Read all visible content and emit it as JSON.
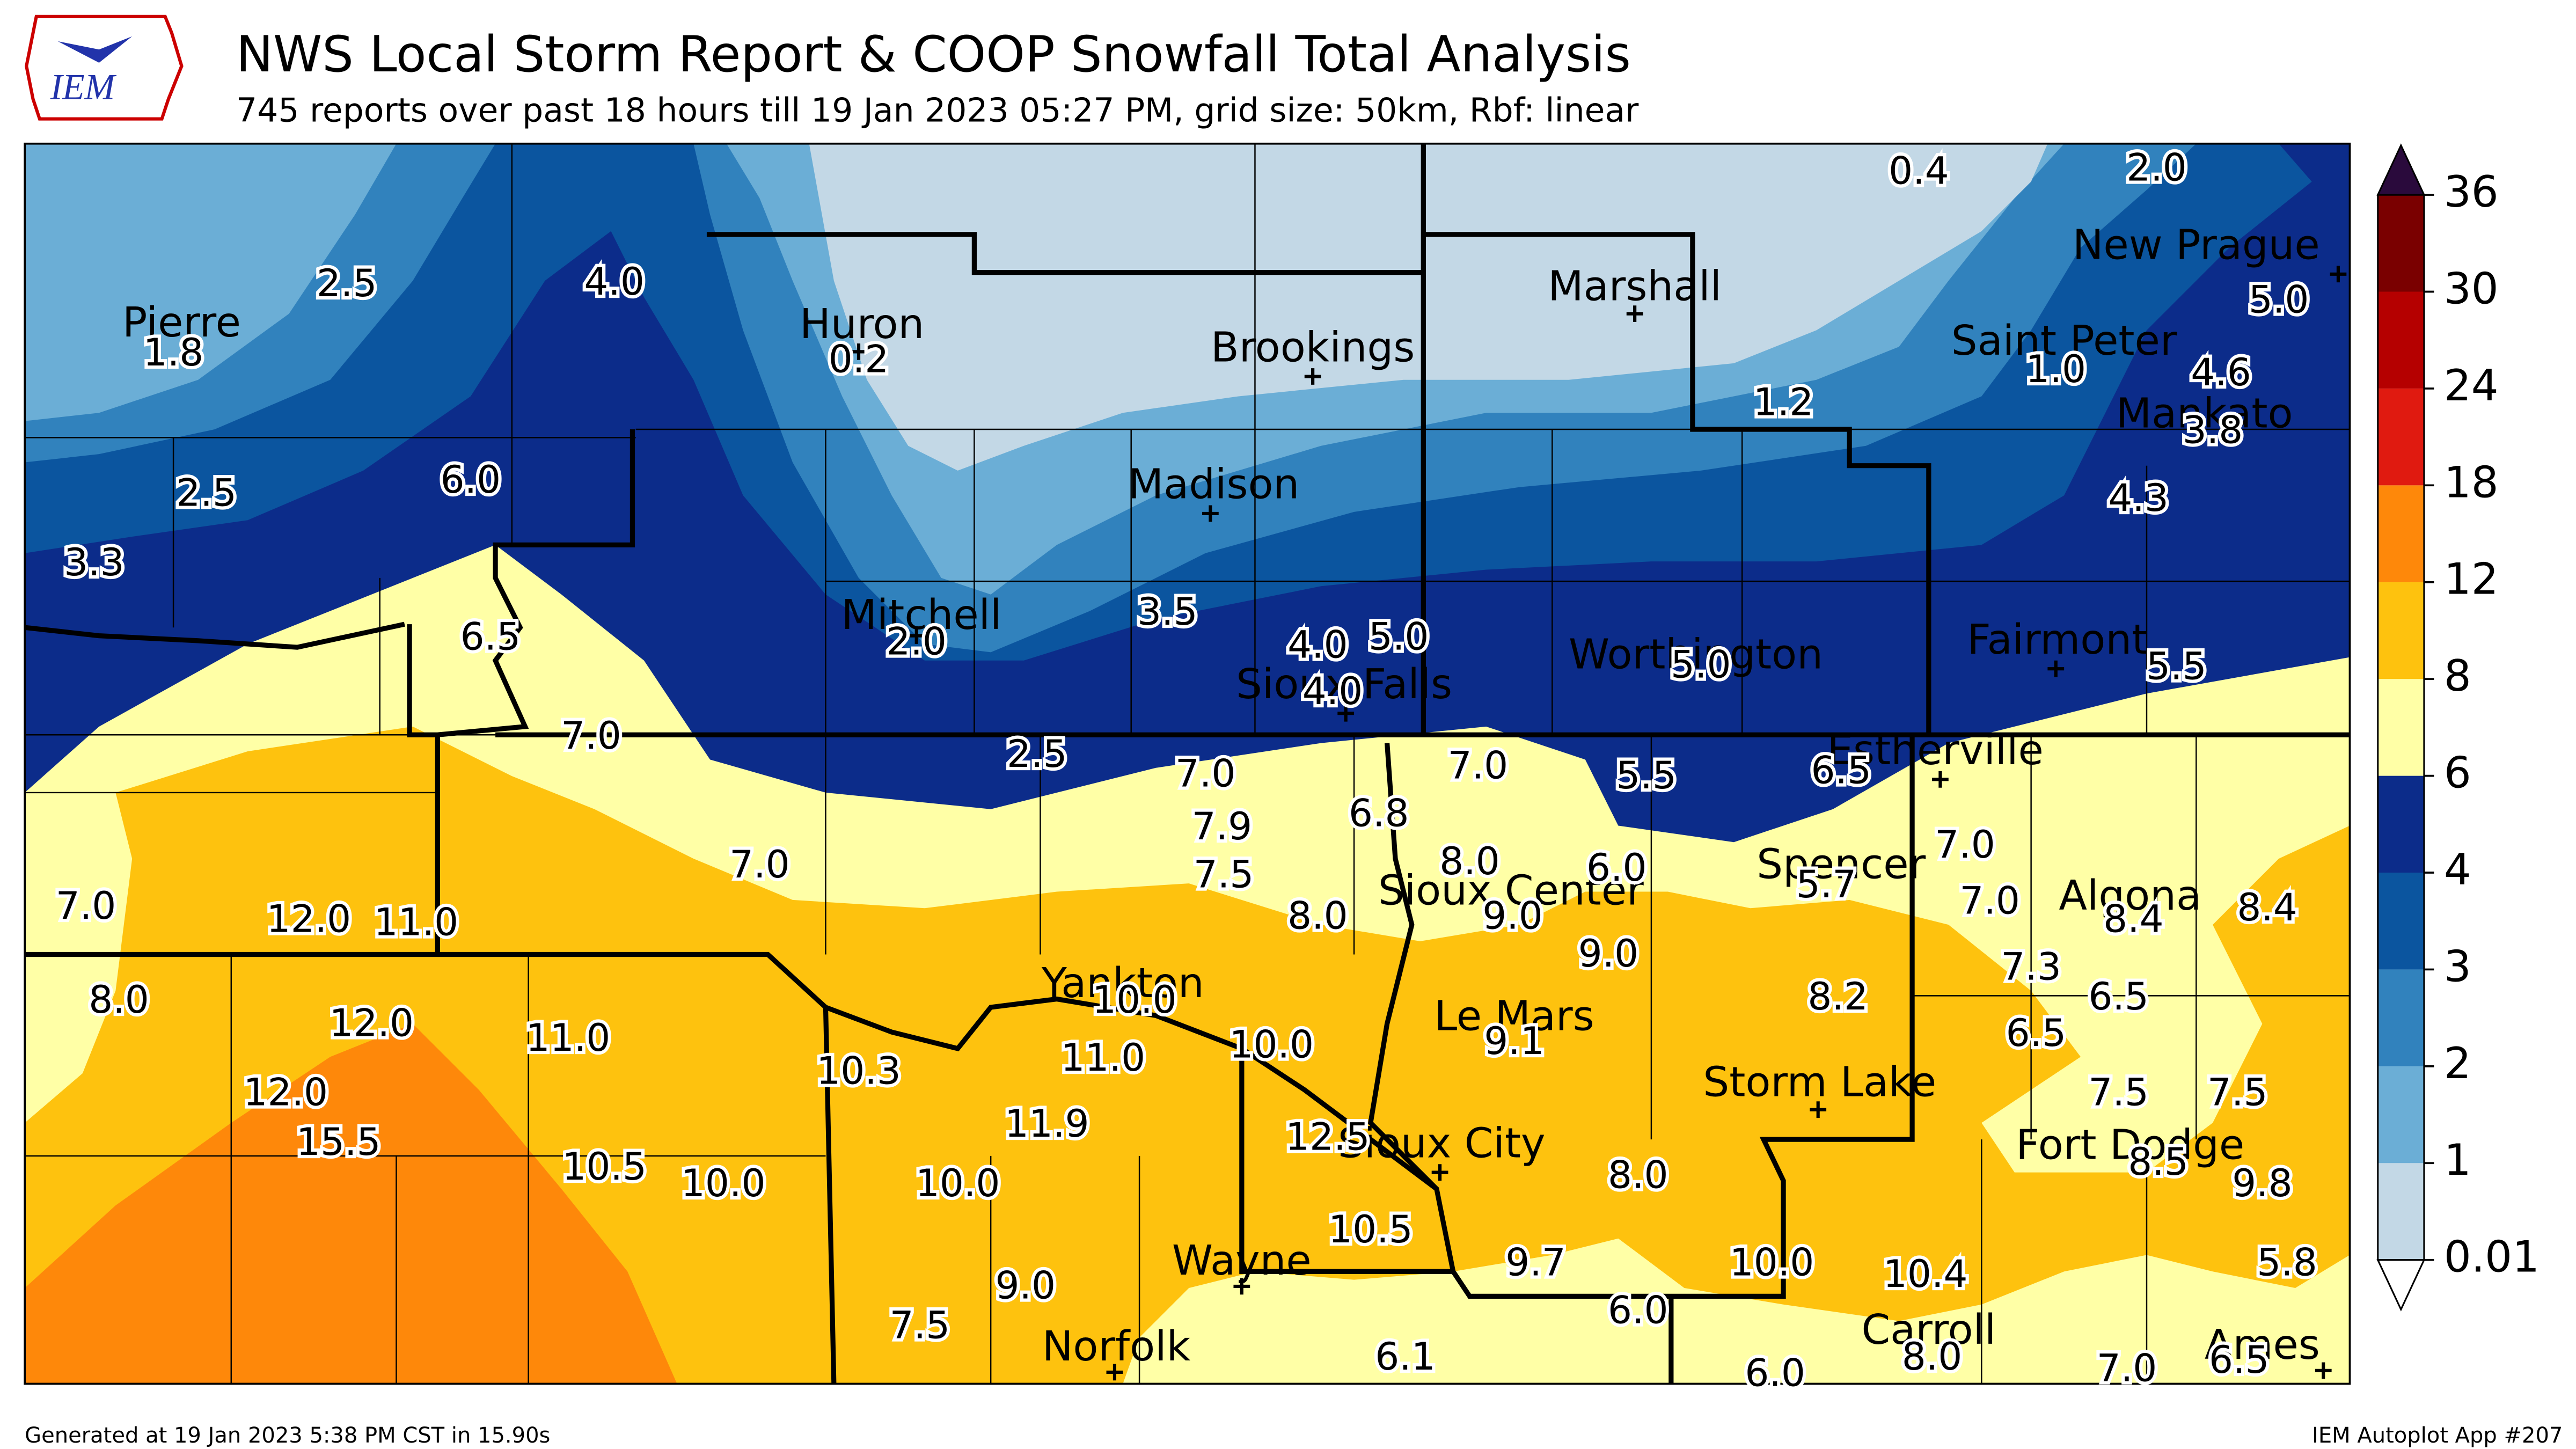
{
  "header": {
    "title": "NWS Local Storm Report & COOP Snowfall Total Analysis",
    "subtitle": "745 reports over past 18 hours till 19 Jan 2023 05:27 PM, grid size: 50km, Rbf: linear",
    "logo_text": "IEM"
  },
  "map": {
    "cities": [
      "Pierre",
      "Huron",
      "Brookings",
      "Marshall",
      "Saint Peter",
      "New Prague",
      "Mankato",
      "Madison",
      "Mitchell",
      "Sioux Falls",
      "Worthington",
      "Fairmont",
      "Estherville",
      "Spencer",
      "Algona",
      "Sioux Center",
      "Le Mars",
      "Yankton",
      "Storm Lake",
      "Fort Dodge",
      "Sioux City",
      "Wayne",
      "Norfolk",
      "Carroll",
      "Ames"
    ],
    "reports": [
      "1.8",
      "2.5",
      "4.0",
      "0.2",
      "2.5",
      "6.0",
      "3.3",
      "6.5",
      "7.0",
      "2.0",
      "3.5",
      "4.0",
      "5.0",
      "4.0",
      "2.5",
      "0.4",
      "2.0",
      "5.0",
      "1.2",
      "1.0",
      "4.6",
      "3.8",
      "4.3",
      "5.0",
      "5.5",
      "7.0",
      "6.8",
      "7.0",
      "5.5",
      "6.5",
      "7.9",
      "7.0",
      "8.0",
      "6.0",
      "7.5",
      "5.7",
      "7.0",
      "7.0",
      "12.0",
      "11.0",
      "8.0",
      "9.0",
      "7.0",
      "8.4",
      "8.4",
      "9.0",
      "8.0",
      "7.3",
      "8.2",
      "6.5",
      "12.0",
      "11.0",
      "10.0",
      "6.5",
      "9.1",
      "10.0",
      "11.0",
      "10.3",
      "12.0",
      "7.5",
      "7.5",
      "11.9",
      "12.5",
      "15.5",
      "10.5",
      "10.0",
      "10.0",
      "8.0",
      "8.5",
      "9.8",
      "10.5",
      "9.7",
      "10.0",
      "10.4",
      "5.8",
      "9.0",
      "6.0",
      "7.5",
      "8.0",
      "6.1",
      "6.0",
      "7.0",
      "6.5"
    ]
  },
  "colorbar": {
    "ticks": [
      0.01,
      1,
      2,
      3,
      4,
      6,
      8,
      12,
      18,
      24,
      30,
      36
    ],
    "colors": [
      "#c3d8e6",
      "#6baed6",
      "#3182bd",
      "#0b559f",
      "#0c2c8a",
      "#ffffa6",
      "#fec20e",
      "#fe880a",
      "#e01a10",
      "#b50000",
      "#7a0000"
    ],
    "over_color": "#2a0a3c",
    "under_color": "#ffffff"
  },
  "footer": {
    "left": "Generated at 19 Jan 2023 5:38 PM CST in 15.90s",
    "right": "IEM Autoplot App #207"
  }
}
